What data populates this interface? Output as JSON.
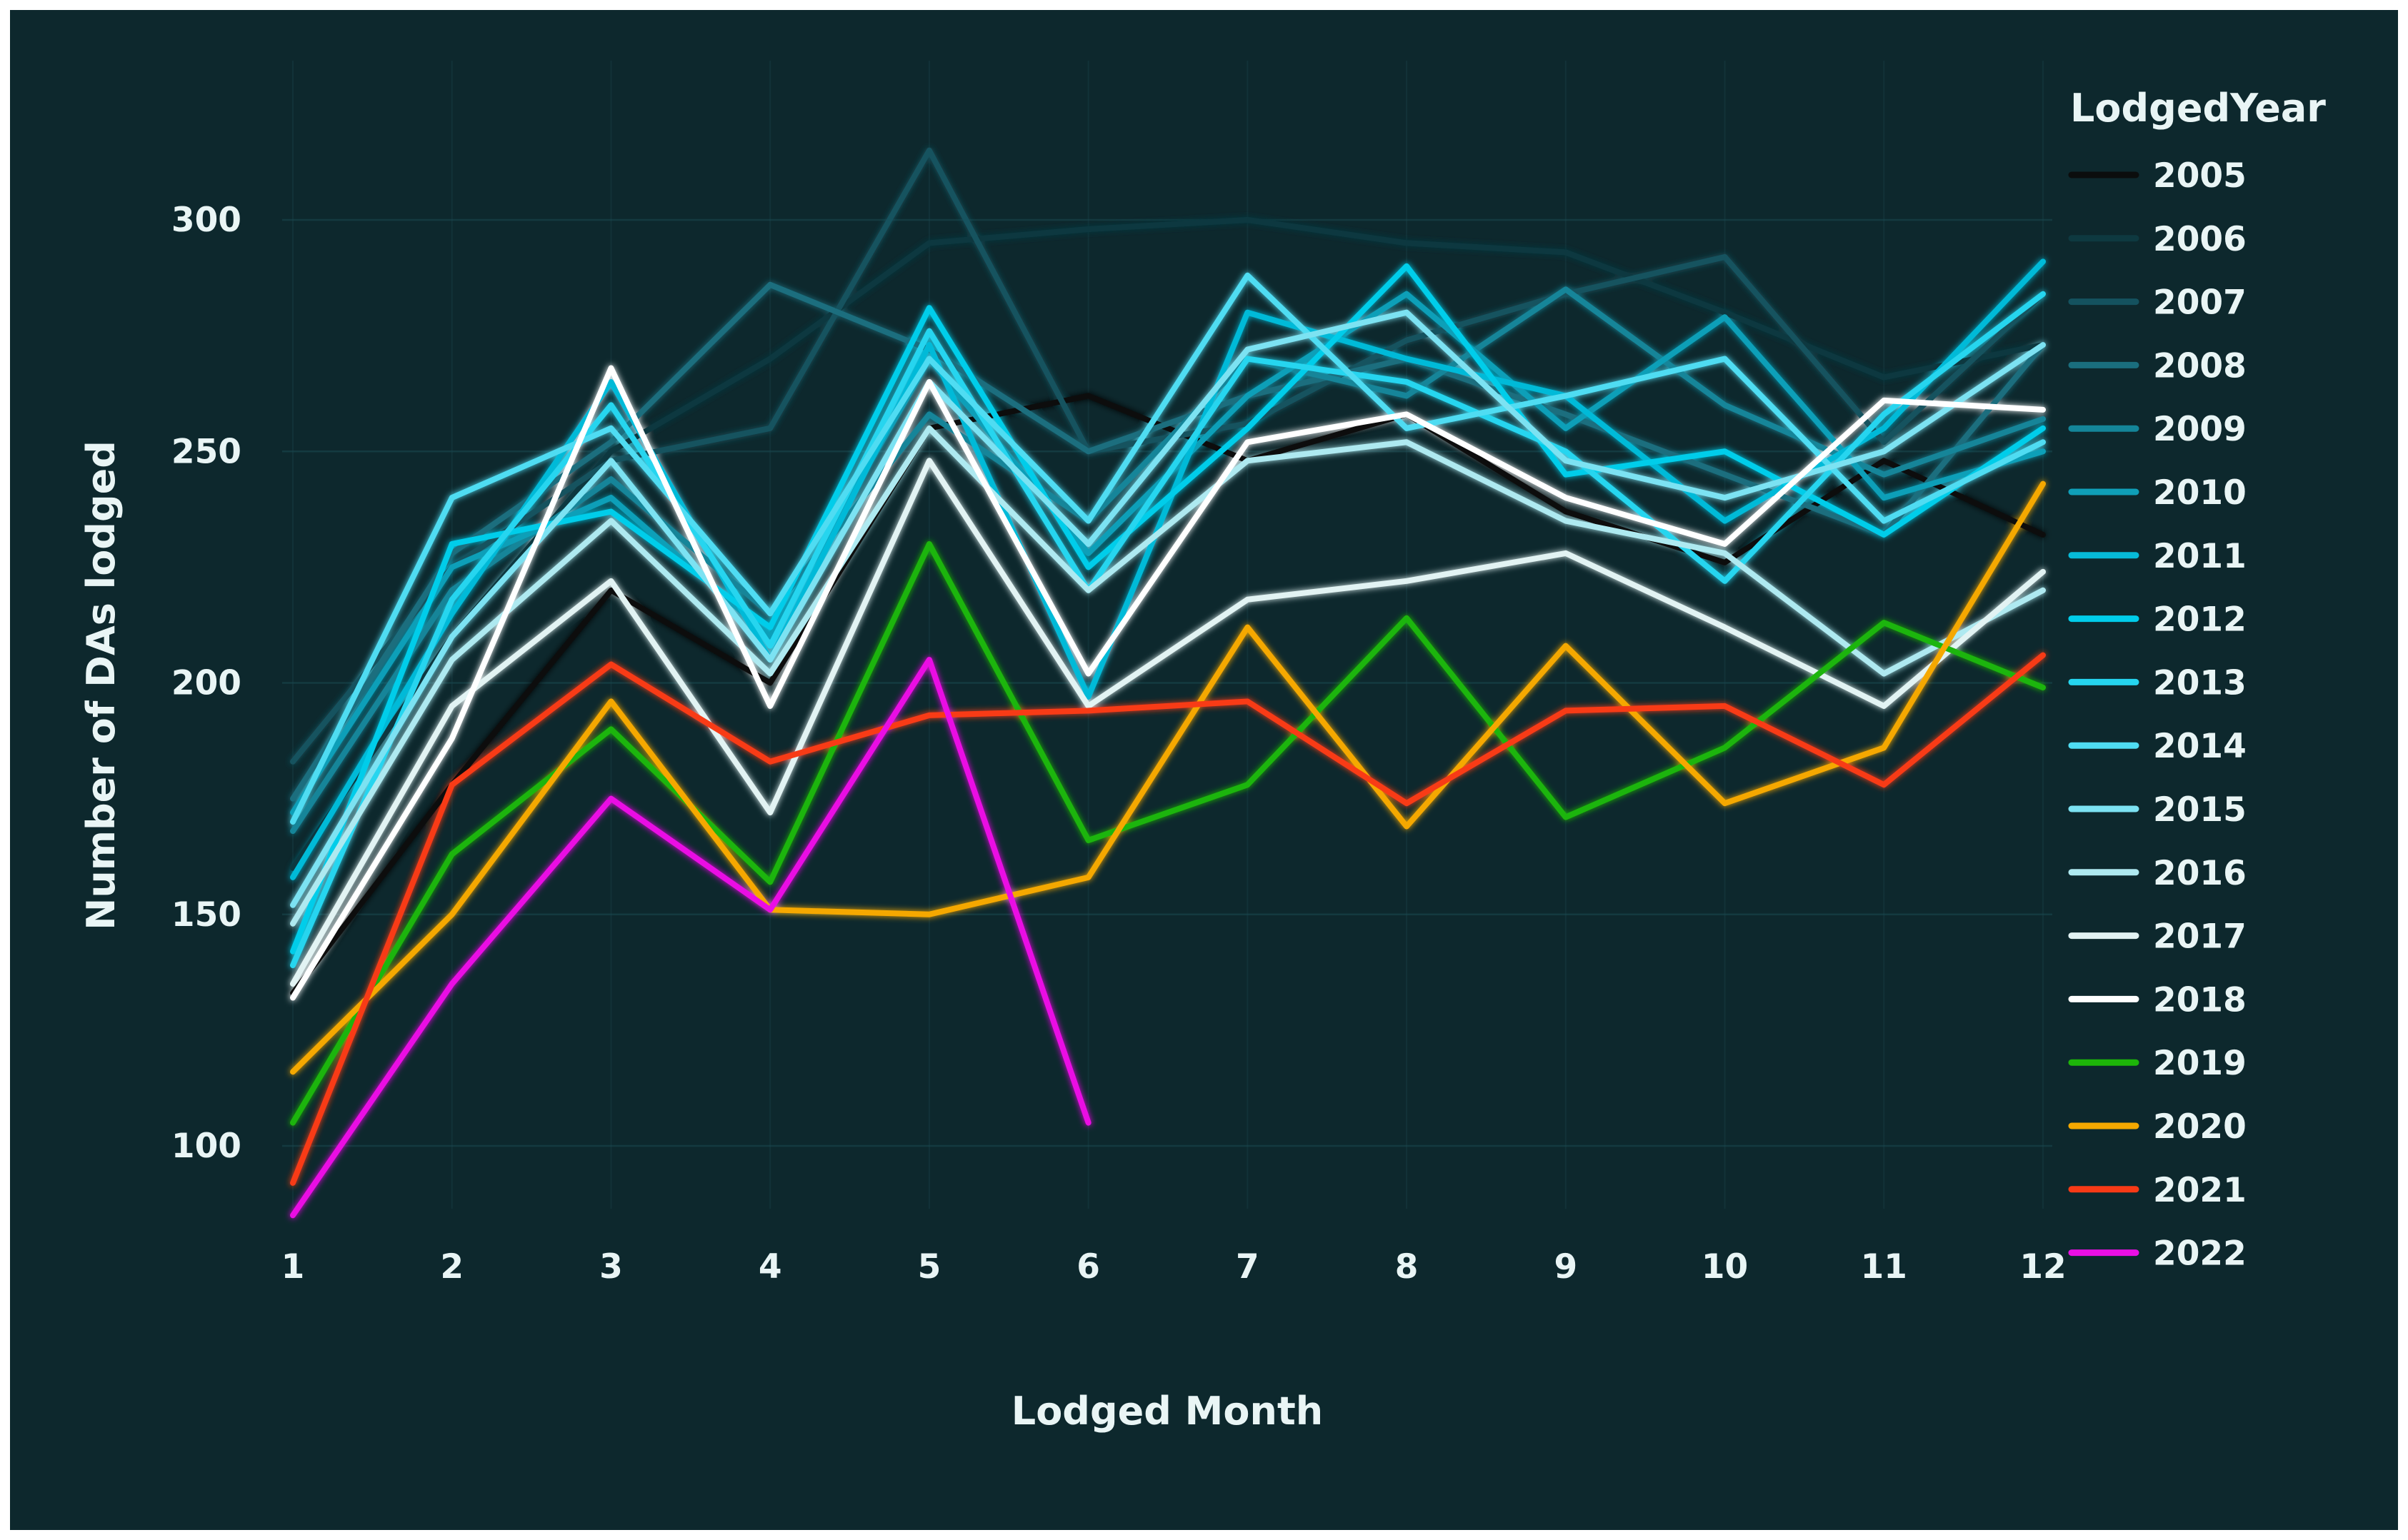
{
  "chart_data": {
    "type": "line",
    "title": "",
    "xlabel": "Lodged Month",
    "ylabel": "Number of DAs lodged",
    "legend_title": "LodgedYear",
    "x": [
      1,
      2,
      3,
      4,
      5,
      6,
      7,
      8,
      9,
      10,
      11,
      12
    ],
    "xticks": [
      1,
      2,
      3,
      4,
      5,
      6,
      7,
      8,
      9,
      10,
      11,
      12
    ],
    "yticks": [
      100,
      150,
      200,
      250,
      300
    ],
    "ylim": [
      85,
      333
    ],
    "xlim": [
      0.93,
      12.05
    ],
    "grid": "on",
    "legend_position": "right",
    "background_color": "#0d282d",
    "gridline_color": "#1a464e",
    "text_color": "#e9f5f5",
    "series": [
      {
        "name": "2005",
        "color": "#0b0d0d",
        "values": [
          133,
          178,
          220,
          200,
          255,
          262,
          248,
          258,
          237,
          226,
          248,
          232
        ]
      },
      {
        "name": "2006",
        "color": "#0e3940",
        "values": [
          160,
          210,
          250,
          270,
          295,
          298,
          300,
          295,
          293,
          280,
          266,
          273
        ]
      },
      {
        "name": "2007",
        "color": "#14525f",
        "values": [
          183,
          225,
          248,
          255,
          315,
          250,
          256,
          274,
          284,
          292,
          252,
          284
        ]
      },
      {
        "name": "2008",
        "color": "#1a6e7e",
        "values": [
          175,
          228,
          252,
          286,
          272,
          250,
          262,
          270,
          258,
          245,
          232,
          273
        ]
      },
      {
        "name": "2009",
        "color": "#148599",
        "values": [
          168,
          220,
          244,
          215,
          258,
          235,
          270,
          262,
          285,
          260,
          245,
          257
        ]
      },
      {
        "name": "2010",
        "color": "#0f9fb8",
        "values": [
          172,
          225,
          240,
          210,
          270,
          228,
          262,
          284,
          255,
          279,
          240,
          250
        ]
      },
      {
        "name": "2011",
        "color": "#06bad8",
        "values": [
          158,
          215,
          265,
          205,
          273,
          197,
          280,
          270,
          262,
          235,
          255,
          291
        ]
      },
      {
        "name": "2012",
        "color": "#00cdea",
        "values": [
          142,
          230,
          237,
          212,
          281,
          225,
          255,
          290,
          245,
          250,
          232,
          255
        ]
      },
      {
        "name": "2013",
        "color": "#25d5ef",
        "values": [
          139,
          218,
          260,
          208,
          276,
          220,
          270,
          265,
          250,
          222,
          258,
          284
        ]
      },
      {
        "name": "2014",
        "color": "#4fdcf2",
        "values": [
          170,
          240,
          255,
          215,
          270,
          235,
          288,
          255,
          262,
          270,
          235,
          252
        ]
      },
      {
        "name": "2015",
        "color": "#7ce2f2",
        "values": [
          152,
          210,
          248,
          205,
          265,
          230,
          272,
          280,
          248,
          240,
          250,
          273
        ]
      },
      {
        "name": "2016",
        "color": "#aee9f0",
        "values": [
          148,
          205,
          235,
          202,
          255,
          220,
          248,
          252,
          235,
          228,
          202,
          220
        ]
      },
      {
        "name": "2017",
        "color": "#e2f3f3",
        "values": [
          135,
          195,
          222,
          172,
          248,
          195,
          218,
          222,
          228,
          212,
          195,
          224
        ]
      },
      {
        "name": "2018",
        "color": "#ffffff",
        "values": [
          132,
          188,
          268,
          195,
          265,
          202,
          252,
          258,
          240,
          230,
          261,
          259
        ]
      },
      {
        "name": "2019",
        "color": "#1db509",
        "values": [
          105,
          163,
          190,
          157,
          230,
          166,
          178,
          214,
          171,
          186,
          213,
          199
        ]
      },
      {
        "name": "2020",
        "color": "#f5a800",
        "values": [
          116,
          150,
          196,
          151,
          150,
          158,
          212,
          169,
          208,
          174,
          186,
          243
        ]
      },
      {
        "name": "2021",
        "color": "#f83a16",
        "values": [
          92,
          178,
          204,
          183,
          193,
          194,
          196,
          174,
          194,
          195,
          178,
          206
        ]
      },
      {
        "name": "2022",
        "color": "#ea0fe4",
        "values": [
          85,
          135,
          175,
          151,
          205,
          105
        ]
      }
    ]
  }
}
